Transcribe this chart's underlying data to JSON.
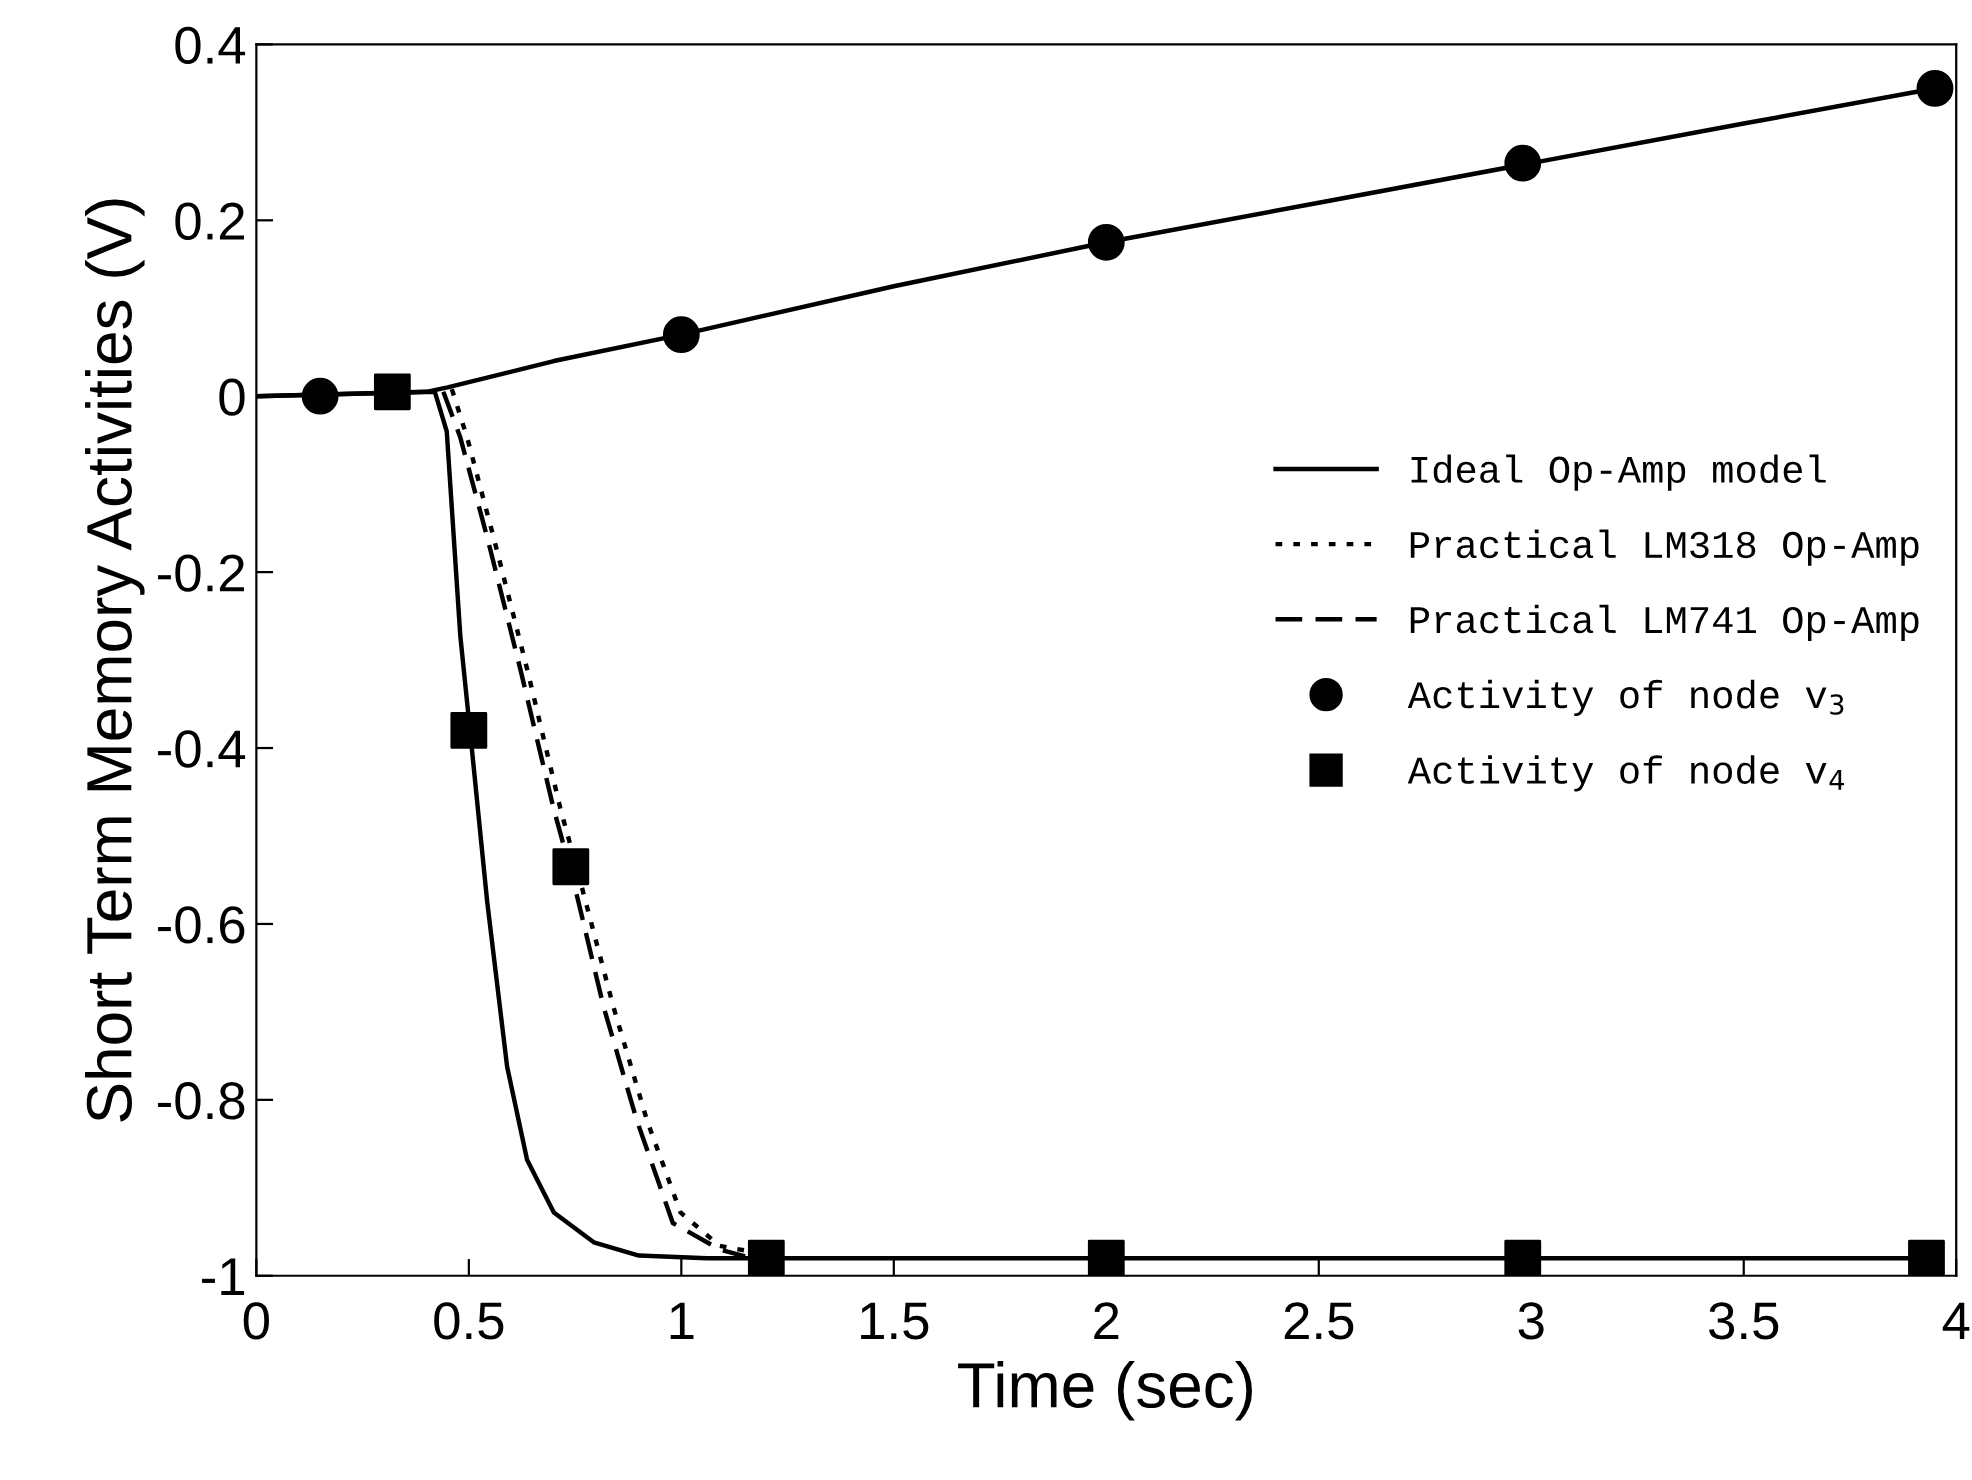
{
  "chart_data": {
    "type": "line",
    "xlabel": "Time (sec)",
    "ylabel": "Short Term Memory Activities (V)",
    "xlim": [
      0,
      4
    ],
    "ylim": [
      -1,
      0.4
    ],
    "xticks": [
      0,
      0.5,
      1,
      1.5,
      2,
      2.5,
      3,
      3.5,
      4
    ],
    "yticks": [
      {
        "value": -1,
        "label": "-1"
      },
      {
        "value": -0.8,
        "label": "-0.8"
      },
      {
        "value": -0.6,
        "label": "-0.6"
      },
      {
        "value": -0.4,
        "label": "-0.4"
      },
      {
        "value": -0.2,
        "label": "-0.2"
      },
      0,
      0.2,
      0.4
    ],
    "grid": false,
    "legend": "right",
    "series": [
      {
        "color": "#000000",
        "line_style": "solid",
        "x": [
          0,
          0.4,
          0.45,
          0.7,
          1.0,
          1.5,
          2.0,
          2.5,
          3.0,
          3.5,
          3.95
        ],
        "values": [
          0,
          0.005,
          0.01,
          0.04,
          0.07,
          0.125,
          0.175,
          0.22,
          0.265,
          0.31,
          0.35
        ]
      },
      {
        "name": "Ideal Op-Amp model",
        "color": "#000000",
        "line_style": "solid",
        "x": [
          0,
          0.42,
          0.448,
          0.48,
          0.504,
          0.543,
          0.59,
          0.637,
          0.7,
          0.794,
          0.9,
          1.06,
          2.0,
          3.0,
          3.95
        ],
        "values": [
          0,
          0.005,
          -0.04,
          -0.273,
          -0.386,
          -0.574,
          -0.762,
          -0.868,
          -0.928,
          -0.962,
          -0.977,
          -0.98,
          -0.98,
          -0.98,
          -0.98
        ]
      },
      {
        "name": "Practical LM318 Op-Amp",
        "color": "#000000",
        "line_style": "dotted",
        "x": [
          0.46,
          0.496,
          0.558,
          0.637,
          0.715,
          0.762,
          0.84,
          0.919,
          0.998,
          1.09,
          1.25
        ],
        "values": [
          0.008,
          -0.047,
          -0.16,
          -0.31,
          -0.468,
          -0.551,
          -0.694,
          -0.823,
          -0.928,
          -0.966,
          -0.98
        ]
      },
      {
        "name": "Practical LM741 Op-Amp",
        "color": "#000000",
        "line_style": "dashed",
        "x": [
          0.44,
          0.48,
          0.543,
          0.621,
          0.699,
          0.746,
          0.817,
          0.895,
          0.98,
          1.09,
          1.15
        ],
        "values": [
          0.005,
          -0.047,
          -0.16,
          -0.31,
          -0.468,
          -0.551,
          -0.694,
          -0.823,
          -0.94,
          -0.97,
          -0.978
        ]
      },
      {
        "name": "Activity of node v$_{3}$",
        "type": "scatter",
        "marker": "circle",
        "color": "#000000",
        "x": [
          0.15,
          1.0,
          2.0,
          2.98,
          3.95
        ],
        "values": [
          0,
          0.07,
          0.175,
          0.265,
          0.35
        ]
      },
      {
        "name": "Activity of node v$_{4}$",
        "type": "scatter",
        "marker": "square",
        "color": "#000000",
        "x": [
          0.32,
          0.5,
          0.74,
          1.2,
          2.0,
          2.98,
          3.93
        ],
        "values": [
          0.005,
          -0.38,
          -0.535,
          -0.98,
          -0.98,
          -0.98,
          -0.98
        ]
      }
    ]
  }
}
